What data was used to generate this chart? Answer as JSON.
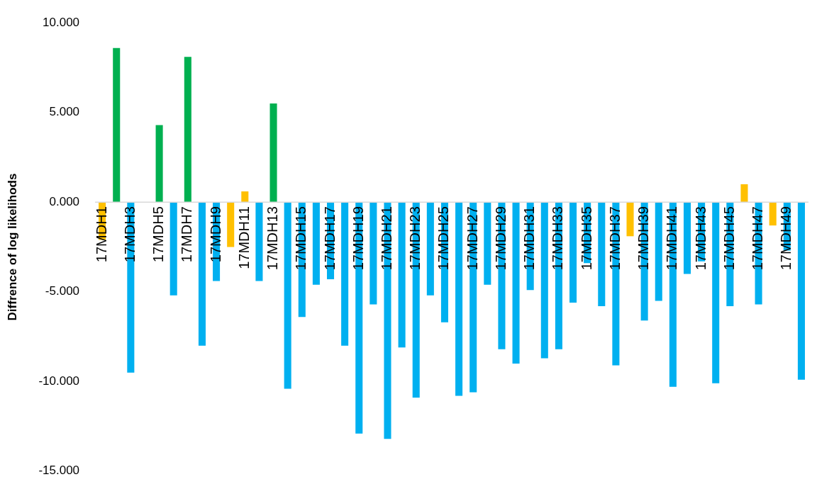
{
  "chart_data": {
    "type": "bar",
    "ylabel": "Diffrence of log likelihods",
    "categories": [
      "17MDH1",
      null,
      "17MDH3",
      null,
      "17MDH5",
      null,
      "17MDH7",
      null,
      "17MDH9",
      null,
      "17MDH11",
      null,
      "17MDH13",
      null,
      "17MDH15",
      null,
      "17MDH17",
      null,
      "17MDH19",
      null,
      "17MDH21",
      null,
      "17MDH23",
      null,
      "17MDH25",
      null,
      "17MDH27",
      null,
      "17MDH29",
      null,
      "17MDH31",
      null,
      "17MDH33",
      null,
      "17MDH35",
      null,
      "17MDH37",
      null,
      "17MDH39",
      null,
      "17MDH41",
      null,
      "17MDH43",
      null,
      "17MDH45",
      null,
      "17MDH47",
      null,
      "17MDH49",
      null
    ],
    "values": [
      -2.1,
      8.6,
      -9.5,
      null,
      4.3,
      -5.2,
      8.1,
      -8.0,
      -4.4,
      -2.5,
      0.6,
      -4.4,
      5.5,
      -10.4,
      -6.4,
      -4.6,
      -4.3,
      -8.0,
      -12.9,
      -5.7,
      -13.2,
      -8.1,
      -10.9,
      -5.2,
      -6.7,
      -10.8,
      -10.6,
      -4.6,
      -8.2,
      -9.0,
      -4.9,
      -8.7,
      -8.2,
      -5.6,
      -3.4,
      -5.8,
      -9.1,
      -1.9,
      -6.6,
      -5.5,
      -10.3,
      -4.0,
      -3.3,
      -10.1,
      -5.8,
      1.0,
      -5.7,
      -1.3,
      -2.7,
      -9.9
    ],
    "colors": [
      "#ffc000",
      "#00b050",
      "#00b0f0",
      "#00b0f0",
      "#00b050",
      "#00b0f0",
      "#00b050",
      "#00b0f0",
      "#00b0f0",
      "#ffc000",
      "#ffc000",
      "#00b0f0",
      "#00b050",
      "#00b0f0",
      "#00b0f0",
      "#00b0f0",
      "#00b0f0",
      "#00b0f0",
      "#00b0f0",
      "#00b0f0",
      "#00b0f0",
      "#00b0f0",
      "#00b0f0",
      "#00b0f0",
      "#00b0f0",
      "#00b0f0",
      "#00b0f0",
      "#00b0f0",
      "#00b0f0",
      "#00b0f0",
      "#00b0f0",
      "#00b0f0",
      "#00b0f0",
      "#00b0f0",
      "#00b0f0",
      "#00b0f0",
      "#00b0f0",
      "#ffc000",
      "#00b0f0",
      "#00b0f0",
      "#00b0f0",
      "#00b0f0",
      "#00b0f0",
      "#00b0f0",
      "#00b0f0",
      "#ffc000",
      "#00b0f0",
      "#ffc000",
      "#00b0f0",
      "#00b0f0"
    ],
    "ylim": [
      -15,
      10
    ],
    "yticks": [
      {
        "value": -15,
        "label": "-15.000"
      },
      {
        "value": -10,
        "label": "-10.000"
      },
      {
        "value": -5,
        "label": "-5.000"
      },
      {
        "value": 0,
        "label": "0.000"
      },
      {
        "value": 5,
        "label": "5.000"
      },
      {
        "value": 10,
        "label": "10.000"
      }
    ],
    "legend": false,
    "grid": false
  }
}
